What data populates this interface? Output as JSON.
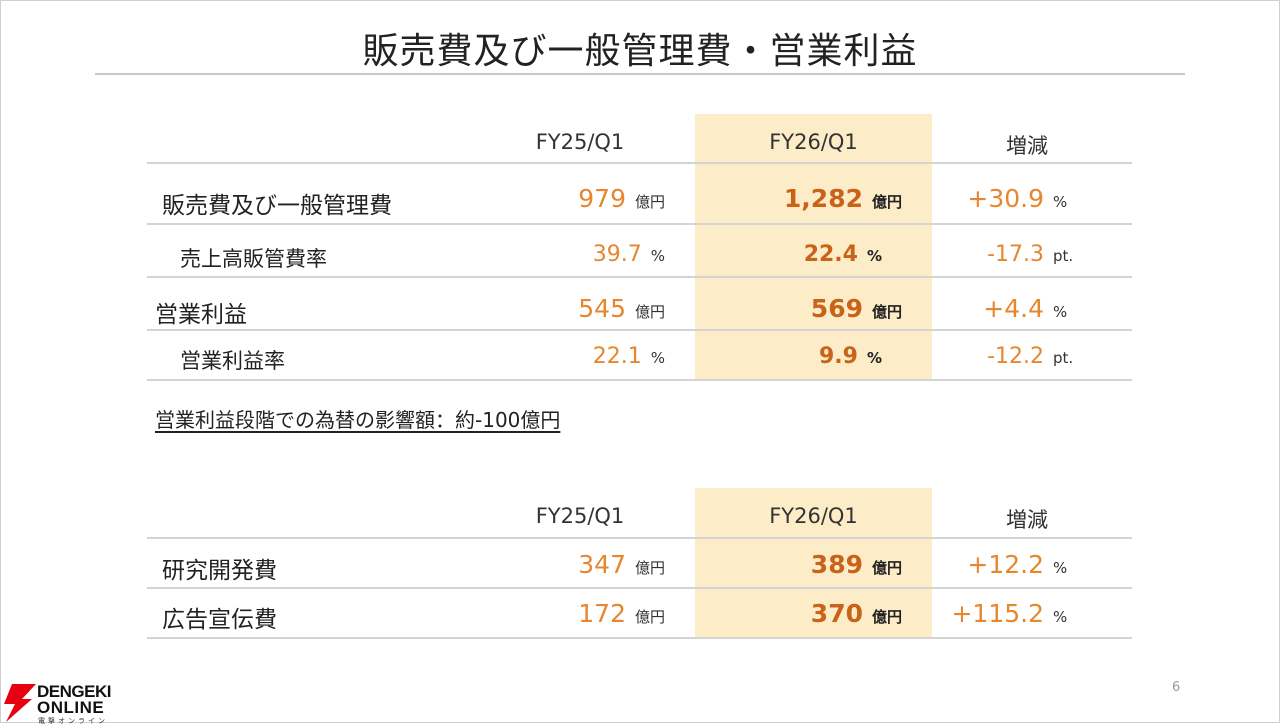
{
  "slide": {
    "title": "販売費及び一般管理費・営業利益",
    "page_number": "6",
    "fx_note": "営業利益段階での為替の影響額：約-100億円"
  },
  "table1": {
    "headers": [
      "FY25/Q1",
      "FY26/Q1",
      "増減"
    ],
    "rows": [
      {
        "label": "販売費及び一般管理費",
        "prev": "979",
        "prev_unit": "億円",
        "curr": "1,282",
        "curr_unit": "億円",
        "change": "+30.9",
        "change_unit": "%"
      },
      {
        "label": "売上高販管費率",
        "prev": "39.7",
        "prev_unit": "%",
        "curr": "22.4",
        "curr_unit": "%",
        "change": "-17.3",
        "change_unit": "pt."
      },
      {
        "label": "営業利益",
        "prev": "545",
        "prev_unit": "億円",
        "curr": "569",
        "curr_unit": "億円",
        "change": "+4.4",
        "change_unit": "%"
      },
      {
        "label": "営業利益率",
        "prev": "22.1",
        "prev_unit": "%",
        "curr": "9.9",
        "curr_unit": "%",
        "change": "-12.2",
        "change_unit": "pt."
      }
    ]
  },
  "table2": {
    "headers": [
      "FY25/Q1",
      "FY26/Q1",
      "増減"
    ],
    "rows": [
      {
        "label": "研究開発費",
        "prev": "347",
        "prev_unit": "億円",
        "curr": "389",
        "curr_unit": "億円",
        "change": "+12.2",
        "change_unit": "%"
      },
      {
        "label": "広告宣伝費",
        "prev": "172",
        "prev_unit": "億円",
        "curr": "370",
        "curr_unit": "億円",
        "change": "+115.2",
        "change_unit": "%"
      }
    ]
  },
  "watermark": {
    "line1": "DENGEKI",
    "line2": "ONLINE",
    "line3": "電撃オンライン"
  },
  "colors": {
    "value_orange": "#e6862e",
    "value_bold": "#c9631a",
    "highlight": "#fcecc8",
    "logo_red": "#e60012"
  }
}
